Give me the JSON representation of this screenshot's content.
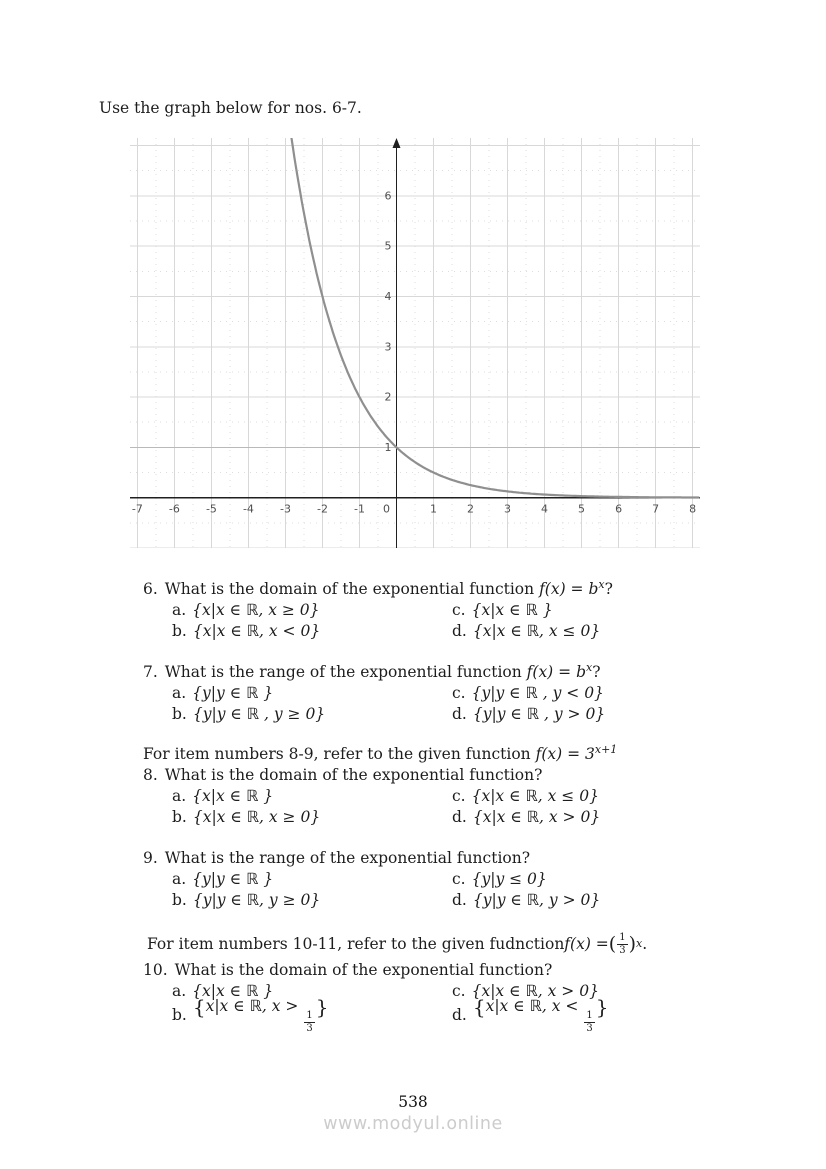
{
  "header": {
    "instruction": "Use the graph below for nos. 6-7."
  },
  "chart_data": {
    "type": "line",
    "title": "",
    "function_label": "y = (1/2)^x exponential decay curve",
    "series": [
      {
        "name": "exponential-curve",
        "base": 0.5,
        "points": [
          [
            -3,
            8
          ],
          [
            -2,
            4
          ],
          [
            -1,
            2
          ],
          [
            0,
            1
          ],
          [
            1,
            0.5
          ],
          [
            2,
            0.25
          ],
          [
            3,
            0.125
          ],
          [
            4,
            0.0625
          ],
          [
            5,
            0.03125
          ],
          [
            6,
            0.015625
          ],
          [
            7,
            0.0078
          ],
          [
            8,
            0.0039
          ]
        ]
      }
    ],
    "x_ticks": [
      -7,
      -6,
      -5,
      -4,
      -3,
      -2,
      -1,
      0,
      1,
      2,
      3,
      4,
      5,
      6,
      7,
      8
    ],
    "y_ticks": [
      1,
      2,
      3,
      4,
      5,
      6
    ],
    "xlim": [
      -7.2,
      8.2
    ],
    "ylim": [
      -1.0,
      7.15
    ],
    "grid": true,
    "legend": false,
    "colors": {
      "curve": "#8f8f8f",
      "axis": "#1f1f1f",
      "grid": "#d8d8d8",
      "grid_dark": "#b9b9b9",
      "grid_minor": "#dedede",
      "tick_label": "#4f4f4f"
    }
  },
  "questions": {
    "q6": {
      "number": "6.",
      "text": "What is the domain of the exponential function ",
      "math": "f(x) = b",
      "sup": "x",
      "tail": "?",
      "options": [
        {
          "label": "a.",
          "text": "{x|x ∈ ℝ, x ≥ 0}"
        },
        {
          "label": "b.",
          "text": "{x|x ∈ ℝ, x < 0}"
        },
        {
          "label": "c.",
          "text": "{x|x ∈ ℝ }"
        },
        {
          "label": "d.",
          "text": "{x|x ∈ ℝ, x ≤ 0}"
        }
      ]
    },
    "q7": {
      "number": "7.",
      "text": "What is the range of the exponential function ",
      "math": "f(x) = b",
      "sup": "x",
      "tail": "?",
      "options": [
        {
          "label": "a.",
          "text": "{y|y ∈ ℝ }"
        },
        {
          "label": "b.",
          "text": "{y|y ∈ ℝ , y ≥ 0}"
        },
        {
          "label": "c.",
          "text": "{y|y ∈ ℝ , y < 0}"
        },
        {
          "label": "d.",
          "text": "{y|y ∈ ℝ , y > 0}"
        }
      ]
    },
    "intro89": {
      "text": "For item numbers 8-9, refer to the given function ",
      "math": "f(x) = 3",
      "sup": "x+1"
    },
    "q8": {
      "number": "8.",
      "text": "What is the domain of the exponential function?",
      "options": [
        {
          "label": "a.",
          "text": "{x|x ∈ ℝ }"
        },
        {
          "label": "b.",
          "text": "{x|x ∈ ℝ, x ≥ 0}"
        },
        {
          "label": "c.",
          "text": "{x|x ∈ ℝ, x ≤ 0}"
        },
        {
          "label": "d.",
          "text": "{x|x ∈ ℝ, x > 0}"
        }
      ]
    },
    "q9": {
      "number": "9.",
      "text": "What is the range of the exponential function?",
      "options": [
        {
          "label": "a.",
          "text": "{y|y ∈ ℝ }"
        },
        {
          "label": "b.",
          "text": "{y|y ∈ ℝ, y ≥ 0}"
        },
        {
          "label": "c.",
          "text": "{y|y ≤ 0}"
        },
        {
          "label": "d.",
          "text": "{y|y ∈ ℝ, y > 0}"
        }
      ]
    },
    "intro1011": {
      "text": "For item numbers 10-11, refer to the given fudnction ",
      "math": "f(x) = ",
      "paren_open": "(",
      "frac_num": "1",
      "frac_den": "3",
      "paren_close": ")",
      "sup": "x",
      "tail": "."
    },
    "q10": {
      "number": "10.",
      "text": "What is the domain of the exponential function?",
      "options": [
        {
          "label": "a.",
          "text": "{x|x ∈ ℝ }"
        },
        {
          "label": "b.",
          "open": "{",
          "pre": "x|x ∈ ℝ, x > ",
          "num": "1",
          "den": "3",
          "close": "}"
        },
        {
          "label": "c.",
          "text": "{x|x ∈ ℝ, x > 0}"
        },
        {
          "label": "d.",
          "open": "{",
          "pre": "x|x ∈ ℝ, x < ",
          "num": "1",
          "den": "3",
          "close": "}"
        }
      ]
    }
  },
  "footer": {
    "page_number": "538",
    "watermark": "www.modyul.online"
  }
}
